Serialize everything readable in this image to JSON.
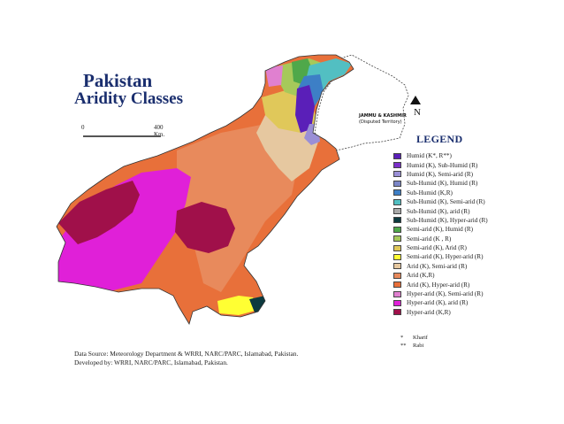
{
  "title": {
    "line1": "Pakistan",
    "line2": "Aridity Classes"
  },
  "scale": {
    "start": "0",
    "end": "400 Km."
  },
  "north_label": "N",
  "disputed_label": {
    "line1": "JAMMU & KASHMIR",
    "line2": "(Disputed Territory)"
  },
  "legend": {
    "heading": "LEGEND",
    "items": [
      {
        "label": "Humid (K*, R**)",
        "color": "#5a1fb8"
      },
      {
        "label": "Humid (K), Sub-Humid (R)",
        "color": "#7b2fc9"
      },
      {
        "label": "Humid (K), Semi-arid (R)",
        "color": "#9a8fd6"
      },
      {
        "label": "Sub-Humid (K), Humid (R)",
        "color": "#7b86c7"
      },
      {
        "label": "Sub-Humid (K,R)",
        "color": "#3d7fc6"
      },
      {
        "label": "Sub-Humid (K), Semi-arid (R)",
        "color": "#52bfc2"
      },
      {
        "label": "Sub-Humid (K), arid (R)",
        "color": "#a9a9a9"
      },
      {
        "label": "Sub-Humid (K), Hyper-arid (R)",
        "color": "#0d3a3f"
      },
      {
        "label": "Semi-arid (K), Humid (R)",
        "color": "#4fa84a"
      },
      {
        "label": "Semi-arid (K , R)",
        "color": "#a6c95a"
      },
      {
        "label": "Semi-arid (K), Arid (R)",
        "color": "#e0c85a"
      },
      {
        "label": "Semi-arid (K), Hyper-arid (R)",
        "color": "#ffff33"
      },
      {
        "label": "Arid (K), Semi-arid (R)",
        "color": "#e6c8a0"
      },
      {
        "label": "Arid (K,R)",
        "color": "#e88a5c"
      },
      {
        "label": "Arid (K), Hyper-arid (R)",
        "color": "#e8703a"
      },
      {
        "label": "Hyper-arid (K), Semi-arid (R)",
        "color": "#e080d0"
      },
      {
        "label": "Hyper-arid (K), arid (R)",
        "color": "#e020d8"
      },
      {
        "label": "Hyper-arid (K,R)",
        "color": "#a0104a"
      }
    ]
  },
  "notes": [
    {
      "mark": "*",
      "text": "Kharif"
    },
    {
      "mark": "**",
      "text": "Rabi"
    }
  ],
  "source": {
    "line1": "Data Source: Meteorology Department & WRRI, NARC/PARC, Islamabad, Pakistan.",
    "line2": "Developed by: WRRI, NARC/PARC, Islamabad, Pakistan."
  }
}
